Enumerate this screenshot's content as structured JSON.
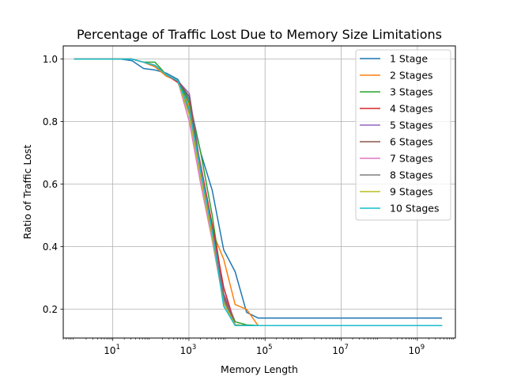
{
  "chart_data": {
    "type": "line",
    "title": "Percentage of Traffic Lost Due to Memory Size Limitations",
    "xlabel": "Memory Length",
    "ylabel": "Ratio of Traffic Lost",
    "xscale": "log",
    "xlim": [
      0.5,
      10000000000
    ],
    "ylim": [
      0.108,
      1.042
    ],
    "xticks": [
      {
        "value": 10,
        "base": "10",
        "exp": "1"
      },
      {
        "value": 1000,
        "base": "10",
        "exp": "3"
      },
      {
        "value": 100000,
        "base": "10",
        "exp": "5"
      },
      {
        "value": 10000000,
        "base": "10",
        "exp": "7"
      },
      {
        "value": 1000000000,
        "base": "10",
        "exp": "9"
      }
    ],
    "yticks": [
      0.2,
      0.4,
      0.6,
      0.8,
      1.0
    ],
    "ytick_labels": [
      "0.2",
      "0.4",
      "0.6",
      "0.8",
      "1.0"
    ],
    "grid": true,
    "legend_position": "top-right",
    "x": [
      1,
      2,
      4,
      8,
      16,
      32,
      64,
      128,
      256,
      512,
      1024,
      2048,
      4096,
      8192,
      16384,
      32768,
      65536,
      131072,
      262144,
      524288,
      1048576,
      2097152,
      4194304,
      8388608,
      16777216,
      33554432,
      67108864,
      134217728,
      268435456,
      536870912,
      1073741824,
      2147483648,
      4294967296
    ],
    "series": [
      {
        "name": "1 Stage",
        "color": "#1f77b4",
        "values": [
          1.0,
          1.0,
          1.0,
          1.0,
          1.0,
          0.995,
          0.97,
          0.965,
          0.955,
          0.935,
          0.87,
          0.7,
          0.58,
          0.39,
          0.32,
          0.19,
          0.172,
          0.172,
          0.172,
          0.172,
          0.172,
          0.172,
          0.172,
          0.172,
          0.172,
          0.172,
          0.172,
          0.172,
          0.172,
          0.172,
          0.172,
          0.172,
          0.172
        ]
      },
      {
        "name": "2 Stages",
        "color": "#ff7f0e",
        "values": [
          1.0,
          1.0,
          1.0,
          1.0,
          1.0,
          1.0,
          0.99,
          0.975,
          0.945,
          0.93,
          0.85,
          0.65,
          0.45,
          0.36,
          0.215,
          0.2,
          0.148,
          0.148,
          0.148,
          0.148,
          0.148,
          0.148,
          0.148,
          0.148,
          0.148,
          0.148,
          0.148,
          0.148,
          0.148,
          0.148,
          0.148,
          0.148,
          0.148
        ]
      },
      {
        "name": "3 Stages",
        "color": "#2ca02c",
        "values": [
          1.0,
          1.0,
          1.0,
          1.0,
          1.0,
          1.0,
          0.99,
          0.99,
          0.95,
          0.93,
          0.86,
          0.7,
          0.5,
          0.25,
          0.16,
          0.15,
          0.148,
          0.148,
          0.148,
          0.148,
          0.148,
          0.148,
          0.148,
          0.148,
          0.148,
          0.148,
          0.148,
          0.148,
          0.148,
          0.148,
          0.148,
          0.148,
          0.148
        ]
      },
      {
        "name": "4 Stages",
        "color": "#d62728",
        "values": [
          1.0,
          1.0,
          1.0,
          1.0,
          1.0,
          1.0,
          0.99,
          0.98,
          0.95,
          0.925,
          0.84,
          0.66,
          0.47,
          0.27,
          0.15,
          0.148,
          0.148,
          0.148,
          0.148,
          0.148,
          0.148,
          0.148,
          0.148,
          0.148,
          0.148,
          0.148,
          0.148,
          0.148,
          0.148,
          0.148,
          0.148,
          0.148,
          0.148
        ]
      },
      {
        "name": "5 Stages",
        "color": "#9467bd",
        "values": [
          1.0,
          1.0,
          1.0,
          1.0,
          1.0,
          1.0,
          0.99,
          0.98,
          0.95,
          0.93,
          0.89,
          0.65,
          0.45,
          0.25,
          0.15,
          0.148,
          0.148,
          0.148,
          0.148,
          0.148,
          0.148,
          0.148,
          0.148,
          0.148,
          0.148,
          0.148,
          0.148,
          0.148,
          0.148,
          0.148,
          0.148,
          0.148,
          0.148
        ]
      },
      {
        "name": "6 Stages",
        "color": "#8c564b",
        "values": [
          1.0,
          1.0,
          1.0,
          1.0,
          1.0,
          1.0,
          0.99,
          0.98,
          0.95,
          0.93,
          0.88,
          0.64,
          0.44,
          0.24,
          0.15,
          0.148,
          0.148,
          0.148,
          0.148,
          0.148,
          0.148,
          0.148,
          0.148,
          0.148,
          0.148,
          0.148,
          0.148,
          0.148,
          0.148,
          0.148,
          0.148,
          0.148,
          0.148
        ]
      },
      {
        "name": "7 Stages",
        "color": "#e377c2",
        "values": [
          1.0,
          1.0,
          1.0,
          1.0,
          1.0,
          1.0,
          0.99,
          0.98,
          0.95,
          0.93,
          0.8,
          0.6,
          0.42,
          0.22,
          0.15,
          0.148,
          0.148,
          0.148,
          0.148,
          0.148,
          0.148,
          0.148,
          0.148,
          0.148,
          0.148,
          0.148,
          0.148,
          0.148,
          0.148,
          0.148,
          0.148,
          0.148,
          0.148
        ]
      },
      {
        "name": "8 Stages",
        "color": "#7f7f7f",
        "values": [
          1.0,
          1.0,
          1.0,
          1.0,
          1.0,
          1.0,
          0.99,
          0.98,
          0.95,
          0.93,
          0.83,
          0.63,
          0.44,
          0.23,
          0.15,
          0.148,
          0.148,
          0.148,
          0.148,
          0.148,
          0.148,
          0.148,
          0.148,
          0.148,
          0.148,
          0.148,
          0.148,
          0.148,
          0.148,
          0.148,
          0.148,
          0.148,
          0.148
        ]
      },
      {
        "name": "9 Stages",
        "color": "#bcbd22",
        "values": [
          1.0,
          1.0,
          1.0,
          1.0,
          1.0,
          1.0,
          0.99,
          0.98,
          0.95,
          0.93,
          0.82,
          0.62,
          0.43,
          0.22,
          0.15,
          0.148,
          0.148,
          0.148,
          0.148,
          0.148,
          0.148,
          0.148,
          0.148,
          0.148,
          0.148,
          0.148,
          0.148,
          0.148,
          0.148,
          0.148,
          0.148,
          0.148,
          0.148
        ]
      },
      {
        "name": "10 Stages",
        "color": "#17becf",
        "values": [
          1.0,
          1.0,
          1.0,
          1.0,
          1.0,
          1.0,
          0.99,
          0.98,
          0.95,
          0.93,
          0.84,
          0.64,
          0.45,
          0.21,
          0.148,
          0.148,
          0.148,
          0.148,
          0.148,
          0.148,
          0.148,
          0.148,
          0.148,
          0.148,
          0.148,
          0.148,
          0.148,
          0.148,
          0.148,
          0.148,
          0.148,
          0.148,
          0.148
        ]
      }
    ]
  }
}
